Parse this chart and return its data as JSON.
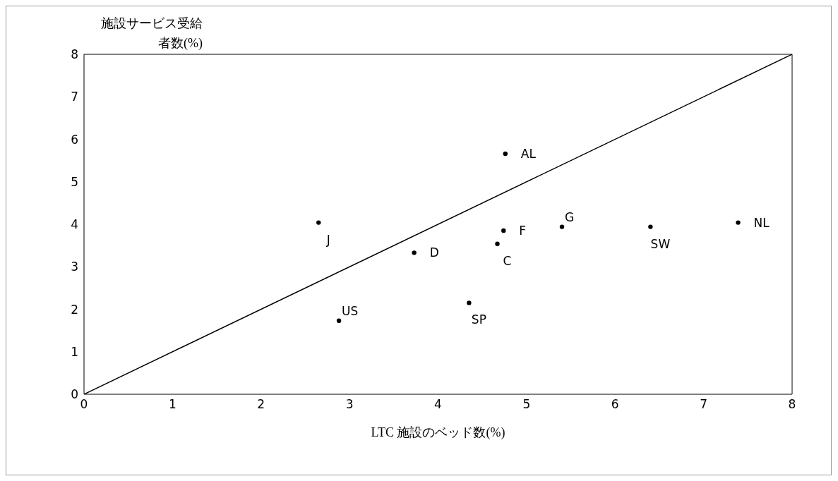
{
  "chart_data": {
    "type": "scatter",
    "xlabel": "LTC 施設のベッド数(%)",
    "ylabel": "施設サービス受給者数(%)",
    "xlim": [
      0,
      8
    ],
    "ylim": [
      0,
      8
    ],
    "xticks": [
      0,
      1,
      2,
      3,
      4,
      5,
      6,
      7,
      8
    ],
    "yticks": [
      0,
      1,
      2,
      3,
      4,
      5,
      6,
      7,
      8
    ],
    "grid": false,
    "legend": false,
    "marker": "circle",
    "series": [
      {
        "type": "scatter",
        "color": "#000000",
        "x": [
          2.65,
          2.88,
          3.73,
          4.35,
          4.67,
          4.74,
          4.76,
          5.4,
          6.4,
          7.39
        ],
        "values": [
          4.04,
          1.73,
          3.33,
          2.15,
          3.54,
          3.85,
          5.66,
          3.94,
          3.94,
          4.04
        ]
      },
      {
        "type": "line",
        "color": "#000000",
        "marker": "none",
        "x": [
          0,
          8
        ],
        "values": [
          0,
          8
        ]
      }
    ],
    "annotations": [
      {
        "text": "J",
        "x": 2.65,
        "y": 4.04
      },
      {
        "text": "US",
        "x": 2.88,
        "y": 1.73
      },
      {
        "text": "D",
        "x": 3.73,
        "y": 3.33
      },
      {
        "text": "SP",
        "x": 4.35,
        "y": 2.15
      },
      {
        "text": "C",
        "x": 4.67,
        "y": 3.54
      },
      {
        "text": "F",
        "x": 4.74,
        "y": 3.85
      },
      {
        "text": "AL",
        "x": 4.76,
        "y": 5.66
      },
      {
        "text": "G",
        "x": 5.4,
        "y": 3.94
      },
      {
        "text": "SW",
        "x": 6.4,
        "y": 3.94
      },
      {
        "text": "NL",
        "x": 7.39,
        "y": 4.04
      }
    ]
  }
}
